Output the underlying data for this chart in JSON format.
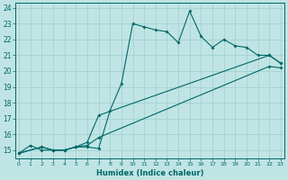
{
  "xlabel": "Humidex (Indice chaleur)",
  "bg_color": "#c0e4e4",
  "grid_color": "#9ecece",
  "line_color": "#006868",
  "line1_x": [
    0,
    1,
    2,
    3,
    4,
    5,
    6,
    7,
    8,
    9,
    10,
    11,
    12,
    13,
    14,
    15,
    16,
    17,
    18,
    19,
    20,
    21,
    22,
    23
  ],
  "line1_y": [
    14.8,
    15.3,
    15.0,
    15.0,
    15.0,
    15.2,
    15.2,
    15.1,
    17.5,
    19.2,
    23.0,
    22.8,
    22.6,
    22.5,
    21.8,
    23.8,
    22.2,
    21.5,
    22.0,
    21.6,
    21.5,
    21.0,
    21.0,
    20.5
  ],
  "line2_x": [
    0,
    2,
    3,
    4,
    5,
    6,
    7,
    22,
    23
  ],
  "line2_y": [
    14.8,
    15.2,
    15.0,
    15.0,
    15.2,
    15.5,
    17.2,
    21.0,
    20.5
  ],
  "line3_x": [
    0,
    2,
    3,
    4,
    5,
    6,
    7,
    22,
    23
  ],
  "line3_y": [
    14.8,
    15.2,
    15.0,
    15.0,
    15.2,
    15.3,
    15.8,
    20.3,
    20.2
  ],
  "xtick_labels": [
    "0",
    "1",
    "2",
    "3",
    "4",
    "5",
    "6",
    "7",
    "8",
    "9",
    "10",
    "11",
    "12",
    "13",
    "14",
    "15",
    "16",
    "17",
    "18",
    "19",
    "20",
    "21",
    "22",
    "23"
  ],
  "ytick_labels": [
    "15",
    "16",
    "17",
    "18",
    "19",
    "20",
    "21",
    "22",
    "23",
    "24"
  ],
  "xlim": [
    -0.3,
    23.3
  ],
  "ylim": [
    14.5,
    24.3
  ]
}
